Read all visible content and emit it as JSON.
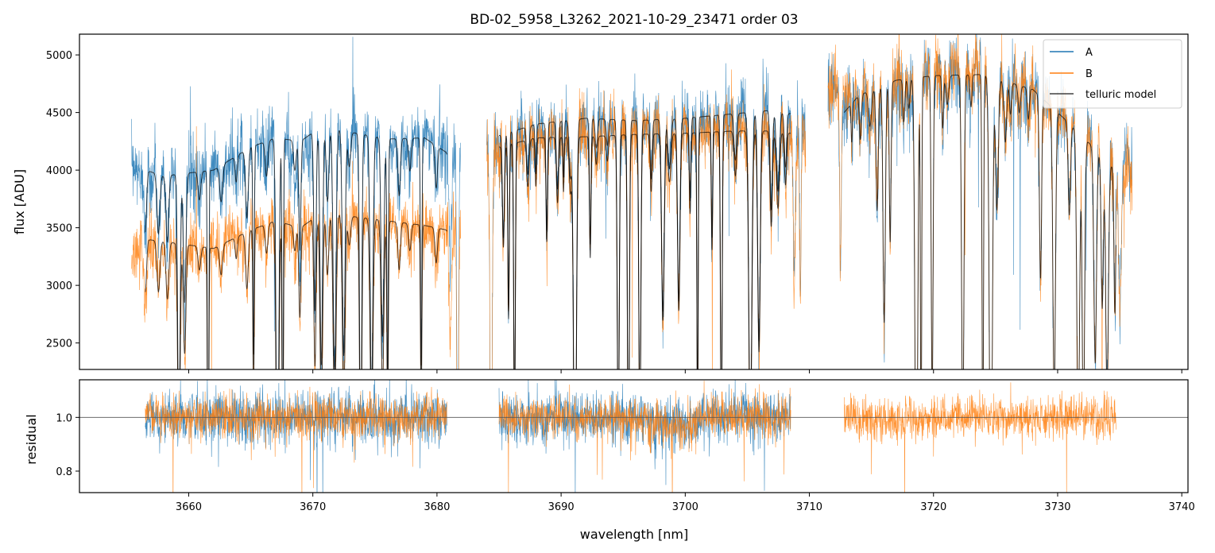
{
  "chart_data": [
    {
      "type": "line",
      "panel": "top",
      "title": "BD-02_5958_L3262_2021-10-29_23471  order 03",
      "xlabel": "",
      "ylabel": "flux [ADU]",
      "xlim": [
        3651.2,
        3740.5
      ],
      "ylim": [
        2270,
        5180
      ],
      "yticks": [
        2500,
        3000,
        3500,
        4000,
        4500,
        5000
      ],
      "xticks": [
        3660,
        3670,
        3680,
        3690,
        3700,
        3710,
        3720,
        3730,
        3740
      ],
      "legend": {
        "placement": "top-right",
        "entries": [
          "A",
          "B",
          "telluric model"
        ]
      },
      "segments": [
        [
          3655.4,
          3681.9
        ],
        [
          3684.0,
          3709.7
        ],
        [
          3711.5,
          3736.0
        ]
      ],
      "series": [
        {
          "name": "A",
          "color": "#1f77b4",
          "continuum_x": [
            3655.4,
            3658,
            3662,
            3665,
            3667,
            3669,
            3671,
            3673,
            3676,
            3679,
            3681.9,
            3684,
            3688,
            3692,
            3696,
            3700,
            3704,
            3707,
            3709.7,
            3711.5,
            3713,
            3716,
            3720,
            3724,
            3728,
            3732,
            3736
          ],
          "continuum_y": [
            4000,
            3960,
            4000,
            4200,
            4300,
            4100,
            4380,
            4380,
            4230,
            4300,
            4150,
            4150,
            4350,
            4360,
            4400,
            4420,
            4470,
            4480,
            4400,
            4700,
            4560,
            4700,
            4820,
            4850,
            4700,
            4300,
            4050
          ],
          "noise": 160
        },
        {
          "name": "B",
          "color": "#ff7f0e",
          "continuum_x": [
            3655.4,
            3658,
            3662,
            3665,
            3667,
            3669,
            3671,
            3673,
            3676,
            3679,
            3681.9,
            3684,
            3688,
            3692,
            3696,
            3700,
            3704,
            3707,
            3709.7,
            3711.5,
            3713,
            3716,
            3720,
            3724,
            3728,
            3732,
            3736
          ],
          "continuum_y": [
            3250,
            3350,
            3350,
            3500,
            3560,
            3450,
            3650,
            3600,
            3550,
            3480,
            3480,
            4100,
            4280,
            4300,
            4320,
            4330,
            4350,
            4340,
            4250,
            4750,
            4650,
            4700,
            4880,
            4850,
            4700,
            4350,
            3950
          ],
          "noise": 140
        },
        {
          "name": "telluric model",
          "color": "#000000",
          "note": "two model curves (for A and B) on segments 1 and 2, one on segment 3",
          "continuum_points": [
            {
              "x": [
                3656.5,
                3658,
                3662,
                3665,
                3667,
                3669,
                3671,
                3673,
                3676,
                3679,
                3680.8
              ],
              "y": [
                4000,
                3950,
                4000,
                4200,
                4280,
                4250,
                4400,
                4330,
                4270,
                4280,
                4150
              ]
            },
            {
              "x": [
                3656.5,
                3658,
                3662,
                3665,
                3667,
                3669,
                3671,
                3673,
                3676,
                3679,
                3680.8
              ],
              "y": [
                3400,
                3380,
                3320,
                3480,
                3560,
                3500,
                3650,
                3600,
                3560,
                3520,
                3480
              ]
            },
            {
              "x": [
                3685.0,
                3688,
                3692,
                3696,
                3700,
                3704,
                3707,
                3708.5
              ],
              "y": [
                4300,
                4400,
                4450,
                4430,
                4450,
                4490,
                4520,
                4490
              ]
            },
            {
              "x": [
                3685.0,
                3688,
                3692,
                3696,
                3700,
                3704,
                3707,
                3708.5
              ],
              "y": [
                4200,
                4280,
                4290,
                4310,
                4320,
                4340,
                4340,
                4320
              ]
            },
            {
              "x": [
                3712.8,
                3714,
                3717,
                3720,
                3724,
                3728,
                3731,
                3734.7
              ],
              "y": [
                4500,
                4650,
                4780,
                4820,
                4830,
                4700,
                4400,
                4000
              ]
            }
          ]
        }
      ]
    },
    {
      "type": "line",
      "panel": "bottom",
      "xlabel": "wavelength [nm]",
      "ylabel": "residual",
      "xlim": [
        3651.2,
        3740.5
      ],
      "ylim": [
        0.72,
        1.14
      ],
      "yticks": [
        0.8,
        1.0
      ],
      "xticks": [
        3660,
        3670,
        3680,
        3690,
        3700,
        3710,
        3720,
        3730,
        3740
      ],
      "reference_line": 1.0,
      "series": [
        {
          "name": "A",
          "color": "#1f77b4",
          "segments": [
            [
              3656.5,
              3680.8
            ],
            [
              3685.0,
              3708.5
            ]
          ],
          "center": 1.0,
          "noise": 0.05
        },
        {
          "name": "B",
          "color": "#ff7f0e",
          "segments": [
            [
              3656.5,
              3680.8
            ],
            [
              3685.0,
              3708.5
            ],
            [
              3712.8,
              3734.7
            ]
          ],
          "center": 1.0,
          "noise": 0.04
        }
      ]
    }
  ]
}
